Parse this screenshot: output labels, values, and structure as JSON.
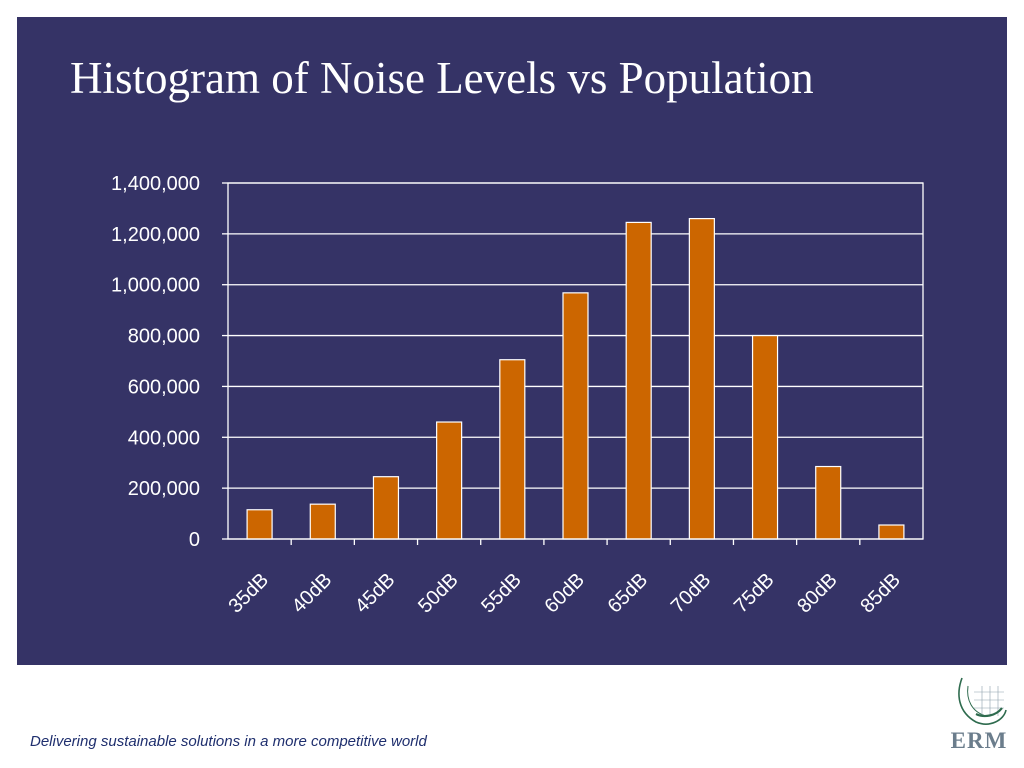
{
  "slide": {
    "title": "Histogram of Noise Levels vs Population",
    "footer": "Delivering sustainable solutions in a more competitive world",
    "logo_text": "ERM"
  },
  "colors": {
    "panel": "#353366",
    "bar": "#cc6600",
    "bar_stroke": "#ffffff",
    "text": "#ffffff",
    "footer": "#1f2f6e",
    "logo": "#6b7d8c",
    "logo_mark": "#2e6b4e"
  },
  "chart_data": {
    "type": "bar",
    "title": "Histogram of Noise Levels vs Population",
    "categories": [
      "35dB",
      "40dB",
      "45dB",
      "50dB",
      "55dB",
      "60dB",
      "65dB",
      "70dB",
      "75dB",
      "80dB",
      "85dB"
    ],
    "values": [
      115000,
      137000,
      245000,
      460000,
      705000,
      968000,
      1245000,
      1260000,
      800000,
      285000,
      55000
    ],
    "ylim": [
      0,
      1400000
    ],
    "yticks": [
      0,
      200000,
      400000,
      600000,
      800000,
      1000000,
      1200000,
      1400000
    ],
    "ytick_labels": [
      "0",
      "200,000",
      "400,000",
      "600,000",
      "800,000",
      "1,000,000",
      "1,200,000",
      "1,400,000"
    ],
    "grid": true,
    "legend": "none"
  }
}
